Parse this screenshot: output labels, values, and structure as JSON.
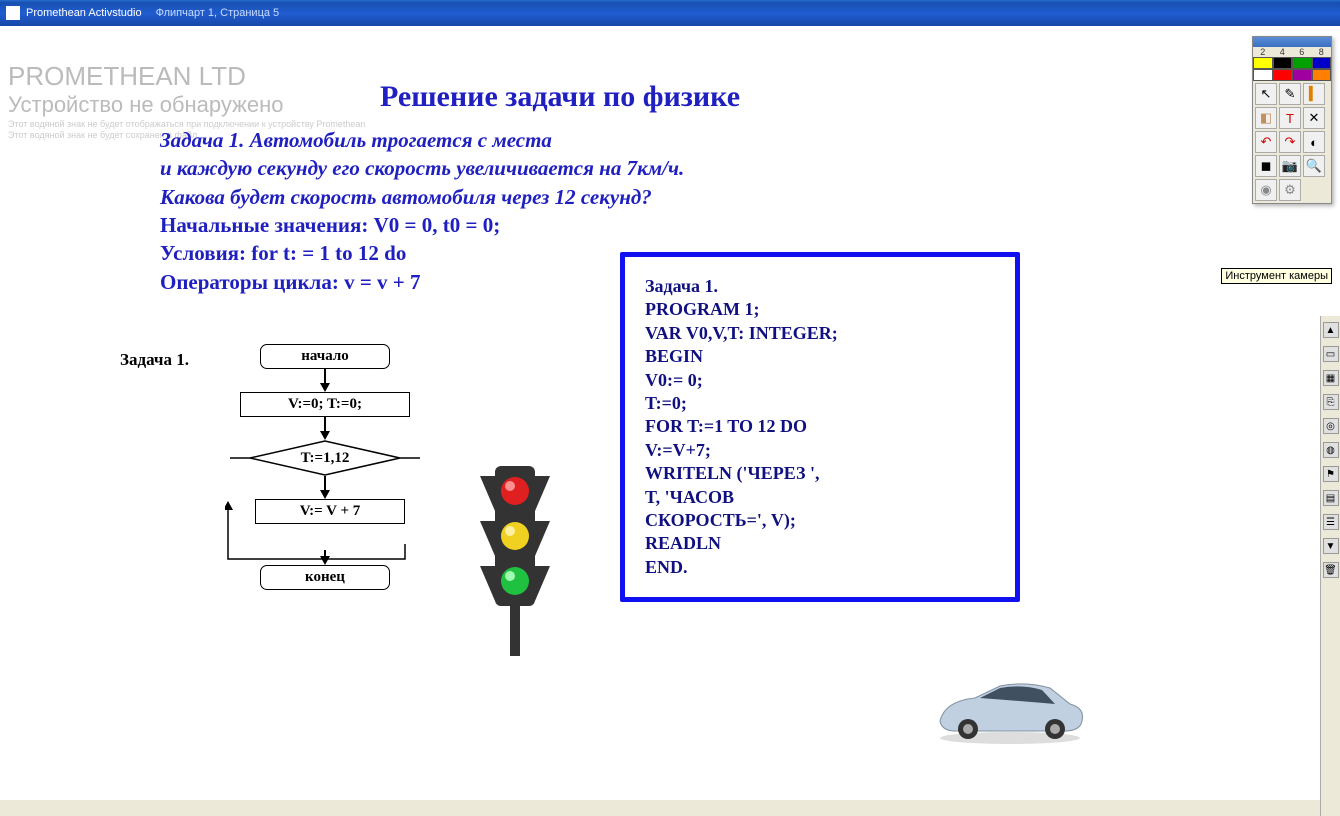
{
  "titlebar": {
    "app": "Promethean Activstudio",
    "doc": "Флипчарт 1,  Страница 5"
  },
  "watermark": {
    "line1": "PROMETHEAN LTD",
    "line2": "Устройство не обнаружено",
    "fine1": "Этот водяной знак не будет отображаться при подключении к устройству Promethean",
    "fine2": "Этот водяной знак не будет сохранен в файл"
  },
  "heading": "Решение задачи по физике",
  "problem": {
    "l1": "Задача 1. Автомобиль трогается с места",
    "l2": "и каждую секунду его скорость увеличивается на 7км/ч.",
    "l3": "Какова будет скорость автомобиля через 12 секунд?",
    "l4": "Начальные значения: V0 = 0, t0 = 0;",
    "l5": "Условия: for t: = 1 to 12 do",
    "l6": "Операторы цикла: v = v + 7"
  },
  "flowchart": {
    "label": "Задача 1.",
    "n1": "начало",
    "n2": "V:=0; T:=0;",
    "n3": "T:=1,12",
    "n4": "V:= V + 7",
    "n5": "конец"
  },
  "code": {
    "l0": "Задача 1.",
    "l1": "PROGRAM 1;",
    "l2": "VAR V0,V,T: INTEGER;",
    "l3": "BEGIN",
    "l4": "V0:= 0;",
    "l5": "T:=0;",
    "l6": "FOR T:=1 TO 12 DO",
    "l7": "V:=V+7;",
    "l8": "WRITELN ('ЧЕРЕЗ ',",
    "l9": "T, 'ЧАСОВ",
    "l10": "СКОРОСТЬ=', V);",
    "l11": "READLN",
    "l12": "END."
  },
  "tooltip": "Инструмент камеры",
  "palette_numbers": [
    "2",
    "4",
    "6",
    "8"
  ],
  "palette_colors": [
    "#ffff00",
    "#000000",
    "#00a000",
    "#0000c8",
    "#ffffff",
    "#ff0000",
    "#a000a0",
    "#ff8000"
  ],
  "tools": [
    {
      "name": "arrow-icon",
      "g": "↖",
      "c": "#000"
    },
    {
      "name": "pen-icon",
      "g": "✎",
      "c": "#000"
    },
    {
      "name": "highlighter-icon",
      "g": "▍",
      "c": "#e08000"
    },
    {
      "name": "eraser-icon",
      "g": "◧",
      "c": "#c09060"
    },
    {
      "name": "text-icon",
      "g": "T",
      "c": "#d00000"
    },
    {
      "name": "clear-icon",
      "g": "✕",
      "c": "#000"
    },
    {
      "name": "undo-icon",
      "g": "↶",
      "c": "#d00000"
    },
    {
      "name": "redo-icon",
      "g": "↷",
      "c": "#d00000"
    },
    {
      "name": "color-pick-icon",
      "g": "◐",
      "c": "#000"
    },
    {
      "name": "shape-icon",
      "g": "◼",
      "c": "#000"
    },
    {
      "name": "camera-icon",
      "g": "📷",
      "c": "#555"
    },
    {
      "name": "zoom-icon",
      "g": "🔍",
      "c": "#555"
    },
    {
      "name": "stamp-icon",
      "g": "◉",
      "c": "#888"
    },
    {
      "name": "gear-icon",
      "g": "⚙",
      "c": "#888"
    }
  ],
  "sidebar": [
    {
      "name": "arrow-up-icon",
      "g": "▲"
    },
    {
      "name": "page-icon",
      "g": "▭"
    },
    {
      "name": "grid-icon",
      "g": "▦"
    },
    {
      "name": "link-icon",
      "g": "⎘"
    },
    {
      "name": "target-icon",
      "g": "◎"
    },
    {
      "name": "world-icon",
      "g": "◍"
    },
    {
      "name": "flag-red-icon",
      "g": "⚑"
    },
    {
      "name": "book-icon",
      "g": "▤"
    },
    {
      "name": "books-icon",
      "g": "☰"
    },
    {
      "name": "arrow-down-icon",
      "g": "▼"
    },
    {
      "name": "trash-icon",
      "g": "🗑"
    }
  ],
  "traffic_colors": {
    "red": "#e02020",
    "yellow": "#f0d020",
    "green": "#20c040",
    "body": "#333333"
  }
}
